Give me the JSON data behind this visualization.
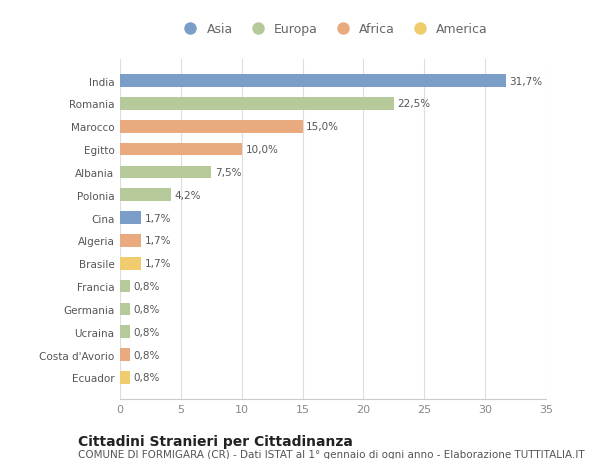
{
  "countries": [
    "India",
    "Romania",
    "Marocco",
    "Egitto",
    "Albania",
    "Polonia",
    "Cina",
    "Algeria",
    "Brasile",
    "Francia",
    "Germania",
    "Ucraina",
    "Costa d'Avorio",
    "Ecuador"
  ],
  "values": [
    31.7,
    22.5,
    15.0,
    10.0,
    7.5,
    4.2,
    1.7,
    1.7,
    1.7,
    0.8,
    0.8,
    0.8,
    0.8,
    0.8
  ],
  "labels": [
    "31,7%",
    "22,5%",
    "15,0%",
    "10,0%",
    "7,5%",
    "4,2%",
    "1,7%",
    "1,7%",
    "1,7%",
    "0,8%",
    "0,8%",
    "0,8%",
    "0,8%",
    "0,8%"
  ],
  "continents": [
    "Asia",
    "Europa",
    "Africa",
    "Africa",
    "Europa",
    "Europa",
    "Asia",
    "Africa",
    "America",
    "Europa",
    "Europa",
    "Europa",
    "Africa",
    "America"
  ],
  "colors": {
    "Asia": "#7b9ec9",
    "Europa": "#b5c99a",
    "Africa": "#e8aa7e",
    "America": "#f0cc6e"
  },
  "legend_order": [
    "Asia",
    "Europa",
    "Africa",
    "America"
  ],
  "xlim": [
    0,
    35
  ],
  "xticks": [
    0,
    5,
    10,
    15,
    20,
    25,
    30,
    35
  ],
  "title": "Cittadini Stranieri per Cittadinanza",
  "subtitle": "COMUNE DI FORMIGARA (CR) - Dati ISTAT al 1° gennaio di ogni anno - Elaborazione TUTTITALIA.IT",
  "background_color": "#ffffff",
  "bar_height": 0.55,
  "title_fontsize": 10,
  "subtitle_fontsize": 7.5,
  "label_fontsize": 7.5,
  "ytick_fontsize": 7.5,
  "xtick_fontsize": 8,
  "legend_fontsize": 9
}
